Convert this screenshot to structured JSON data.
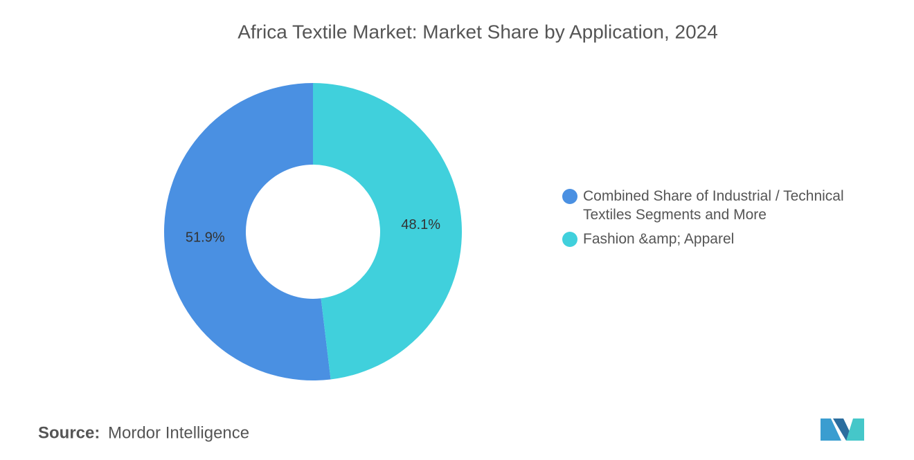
{
  "chart_data": {
    "type": "donut",
    "title": "Africa Textile Market: Market Share by Application, 2024",
    "categories": [
      "Combined Share of Industrial / Technical Textiles Segments and More",
      "Fashion &amp; Apparel"
    ],
    "values": [
      51.9,
      48.1
    ],
    "value_labels": [
      "51.9%",
      "48.1%"
    ],
    "colors": [
      "#4a90e2",
      "#40d0dc"
    ],
    "legend": "right"
  },
  "footer": {
    "source_label": "Source:",
    "source": "Mordor Intelligence"
  }
}
